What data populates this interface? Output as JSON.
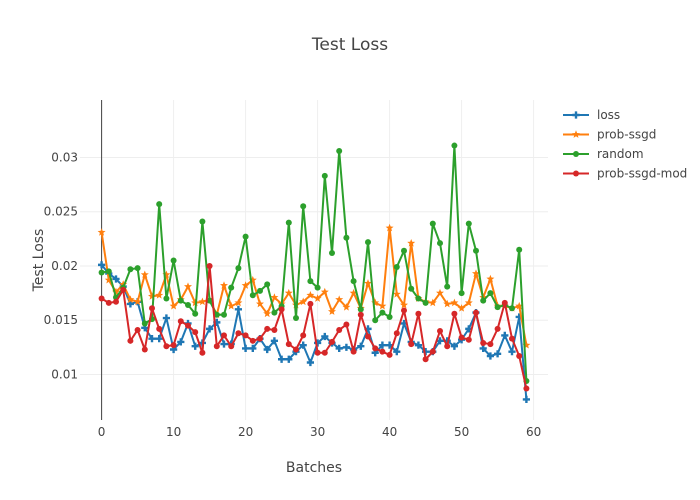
{
  "chart_data": {
    "type": "line",
    "title": "Test Loss",
    "xlabel": "Batches",
    "ylabel": "Test Loss",
    "xlim": [
      -3,
      62
    ],
    "ylim": [
      0.0058,
      0.0353
    ],
    "xticks": [
      0,
      10,
      20,
      30,
      40,
      50,
      60
    ],
    "xtick_labels": [
      "0",
      "10",
      "20",
      "30",
      "40",
      "50",
      "60"
    ],
    "yticks": [
      0.01,
      0.015,
      0.02,
      0.025,
      0.03
    ],
    "ytick_labels": [
      "0.01",
      "0.015",
      "0.02",
      "0.025",
      "0.03"
    ],
    "grid": true,
    "legend_position": "top-right",
    "x": [
      0,
      1,
      2,
      3,
      4,
      5,
      6,
      7,
      8,
      9,
      10,
      11,
      12,
      13,
      14,
      15,
      16,
      17,
      18,
      19,
      20,
      21,
      22,
      23,
      24,
      25,
      26,
      27,
      28,
      29,
      30,
      31,
      32,
      33,
      34,
      35,
      36,
      37,
      38,
      39,
      40,
      41,
      42,
      43,
      44,
      45,
      46,
      47,
      48,
      49,
      50,
      51,
      52,
      53,
      54,
      55,
      56,
      57,
      58,
      59
    ],
    "series": [
      {
        "name": "loss",
        "color": "#1f77b4",
        "marker": "cross",
        "values": [
          0.0201,
          0.0193,
          0.0188,
          0.0181,
          0.0165,
          0.0167,
          0.0143,
          0.0133,
          0.0133,
          0.0152,
          0.0123,
          0.013,
          0.0147,
          0.0126,
          0.0129,
          0.0142,
          0.0148,
          0.0128,
          0.0128,
          0.016,
          0.0124,
          0.0124,
          0.0133,
          0.0123,
          0.0131,
          0.0114,
          0.0114,
          0.0121,
          0.0127,
          0.0111,
          0.0129,
          0.0135,
          0.0129,
          0.0124,
          0.0125,
          0.0123,
          0.0126,
          0.0142,
          0.012,
          0.0127,
          0.0127,
          0.0121,
          0.0147,
          0.013,
          0.0127,
          0.0121,
          0.0121,
          0.0131,
          0.0131,
          0.0126,
          0.0132,
          0.0142,
          0.0157,
          0.0124,
          0.0117,
          0.0119,
          0.0136,
          0.0121,
          0.0153,
          0.0077
        ]
      },
      {
        "name": "prob-ssgd",
        "color": "#ff7f0e",
        "marker": "star",
        "values": [
          0.0231,
          0.0187,
          0.0176,
          0.0183,
          0.0169,
          0.0167,
          0.0192,
          0.0172,
          0.0173,
          0.0192,
          0.0163,
          0.0169,
          0.0181,
          0.0166,
          0.0167,
          0.0169,
          0.0155,
          0.0182,
          0.0163,
          0.0166,
          0.0182,
          0.0187,
          0.0165,
          0.0156,
          0.0171,
          0.0165,
          0.0175,
          0.0164,
          0.0167,
          0.0173,
          0.017,
          0.0176,
          0.0158,
          0.0169,
          0.0162,
          0.0175,
          0.0161,
          0.0184,
          0.0166,
          0.0163,
          0.0235,
          0.0174,
          0.0164,
          0.0221,
          0.017,
          0.0167,
          0.0166,
          0.0175,
          0.0165,
          0.0166,
          0.0161,
          0.0166,
          0.0193,
          0.0171,
          0.0188,
          0.0163,
          0.0163,
          0.0161,
          0.0163,
          0.0127
        ]
      },
      {
        "name": "random",
        "color": "#2ca02c",
        "marker": "circle",
        "values": [
          0.0194,
          0.0195,
          0.0171,
          0.018,
          0.0197,
          0.0198,
          0.0147,
          0.0151,
          0.0257,
          0.017,
          0.0205,
          0.0168,
          0.0164,
          0.0156,
          0.0241,
          0.0168,
          0.0155,
          0.0155,
          0.018,
          0.0198,
          0.0227,
          0.0173,
          0.0177,
          0.0183,
          0.0157,
          0.0163,
          0.024,
          0.0152,
          0.0255,
          0.0186,
          0.018,
          0.0283,
          0.0212,
          0.0306,
          0.0226,
          0.0186,
          0.016,
          0.0222,
          0.015,
          0.0157,
          0.0153,
          0.0199,
          0.0214,
          0.0179,
          0.017,
          0.0166,
          0.0239,
          0.0221,
          0.0181,
          0.0311,
          0.0175,
          0.0239,
          0.0214,
          0.0168,
          0.0175,
          0.0162,
          0.0164,
          0.0161,
          0.0215,
          0.0094
        ]
      },
      {
        "name": "prob-ssgd-mod",
        "color": "#d62728",
        "marker": "circle",
        "values": [
          0.017,
          0.0166,
          0.0167,
          0.0178,
          0.0131,
          0.0141,
          0.0123,
          0.0161,
          0.0142,
          0.0126,
          0.0127,
          0.0149,
          0.0145,
          0.0139,
          0.012,
          0.02,
          0.0126,
          0.0136,
          0.0126,
          0.0138,
          0.0136,
          0.0131,
          0.0133,
          0.0142,
          0.0141,
          0.016,
          0.0128,
          0.0123,
          0.0136,
          0.0165,
          0.012,
          0.012,
          0.013,
          0.0141,
          0.0146,
          0.0121,
          0.0155,
          0.0135,
          0.0124,
          0.0121,
          0.0118,
          0.0138,
          0.0159,
          0.0128,
          0.0156,
          0.0114,
          0.0121,
          0.014,
          0.0126,
          0.0156,
          0.0134,
          0.0132,
          0.0157,
          0.0129,
          0.0128,
          0.0142,
          0.0166,
          0.0133,
          0.0117,
          0.0087
        ]
      }
    ]
  }
}
